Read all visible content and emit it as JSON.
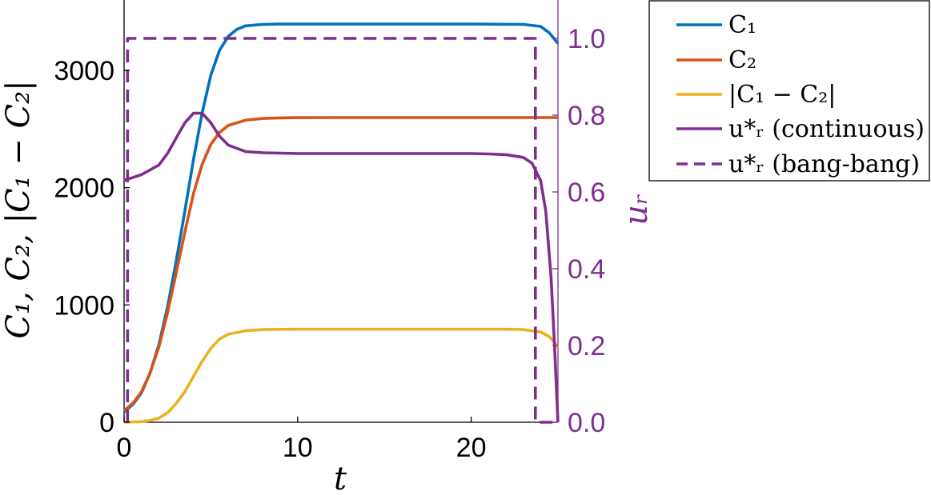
{
  "chart_data": {
    "type": "line",
    "xlabel": "t",
    "ylabel_left": "C₁, C₂, |C₁ − C₂|",
    "ylabel_right": "uᵣ",
    "xlim": [
      0,
      25
    ],
    "ylim_left": [
      0,
      3600
    ],
    "ylim_right": [
      0,
      1.1
    ],
    "x_ticks": [
      "0",
      "10",
      "20"
    ],
    "x_tick_values": [
      0,
      10,
      20
    ],
    "y_left_ticks": [
      "0",
      "1000",
      "2000",
      "3000"
    ],
    "y_left_tick_values": [
      0,
      1000,
      2000,
      3000
    ],
    "y_right_ticks": [
      "0.0",
      "0.2",
      "0.4",
      "0.6",
      "0.8",
      "1.0"
    ],
    "y_right_tick_values": [
      0,
      0.2,
      0.4,
      0.6,
      0.8,
      1.0
    ],
    "grid": false,
    "legend_position": "outside-top-right",
    "series": [
      {
        "name": "C₁",
        "axis": "left",
        "color": "#0072BD",
        "dash": "solid",
        "x": [
          0,
          0.5,
          1,
          1.5,
          2,
          2.5,
          3,
          3.5,
          4,
          4.5,
          5,
          5.5,
          6,
          6.5,
          7,
          8,
          9,
          10,
          12,
          15,
          20,
          23,
          24,
          24.5,
          25
        ],
        "y": [
          90,
          150,
          250,
          420,
          660,
          980,
          1370,
          1800,
          2240,
          2640,
          2960,
          3170,
          3290,
          3350,
          3380,
          3392,
          3395,
          3395,
          3395,
          3395,
          3395,
          3392,
          3375,
          3320,
          3230
        ]
      },
      {
        "name": "C₂",
        "axis": "left",
        "color": "#D95319",
        "dash": "solid",
        "x": [
          0,
          0.5,
          1,
          1.5,
          2,
          2.5,
          3,
          3.5,
          4,
          4.5,
          5,
          5.5,
          6,
          7,
          8,
          9,
          10,
          12,
          15,
          20,
          25
        ],
        "y": [
          100,
          160,
          260,
          420,
          640,
          930,
          1270,
          1620,
          1950,
          2200,
          2370,
          2470,
          2530,
          2575,
          2590,
          2595,
          2597,
          2598,
          2598,
          2598,
          2598
        ]
      },
      {
        "name": "|C₁ − C₂|",
        "axis": "left",
        "color": "#EDB120",
        "dash": "solid",
        "x": [
          0,
          1,
          1.5,
          2,
          2.5,
          3,
          3.5,
          4,
          4.5,
          5,
          5.5,
          6,
          7,
          8,
          9,
          10,
          12,
          15,
          20,
          22,
          23,
          24,
          24.5,
          25
        ],
        "y": [
          0,
          5,
          15,
          35,
          80,
          160,
          260,
          390,
          520,
          630,
          710,
          750,
          780,
          790,
          792,
          793,
          793,
          793,
          793,
          793,
          790,
          770,
          730,
          640
        ]
      },
      {
        "name": "u*ᵣ (continuous)",
        "axis": "right",
        "color": "#7E2F8E",
        "dash": "solid",
        "x": [
          0,
          1,
          2,
          2.5,
          3,
          3.5,
          4,
          4.5,
          5,
          5.5,
          6,
          7,
          8,
          10,
          15,
          20,
          21,
          22,
          23,
          23.5,
          24,
          24.3,
          24.6,
          24.8,
          25
        ],
        "y": [
          0.63,
          0.645,
          0.67,
          0.7,
          0.74,
          0.78,
          0.805,
          0.805,
          0.78,
          0.745,
          0.722,
          0.705,
          0.702,
          0.7,
          0.7,
          0.7,
          0.699,
          0.697,
          0.69,
          0.675,
          0.63,
          0.55,
          0.38,
          0.2,
          0.0
        ]
      },
      {
        "name": "u*ᵣ (bang-bang)",
        "axis": "right",
        "color": "#7E2F8E",
        "dash": "dashed",
        "x": [
          0.2,
          0.2,
          23.7,
          23.7,
          25
        ],
        "y": [
          0,
          1.0,
          1.0,
          0,
          0
        ]
      }
    ]
  }
}
